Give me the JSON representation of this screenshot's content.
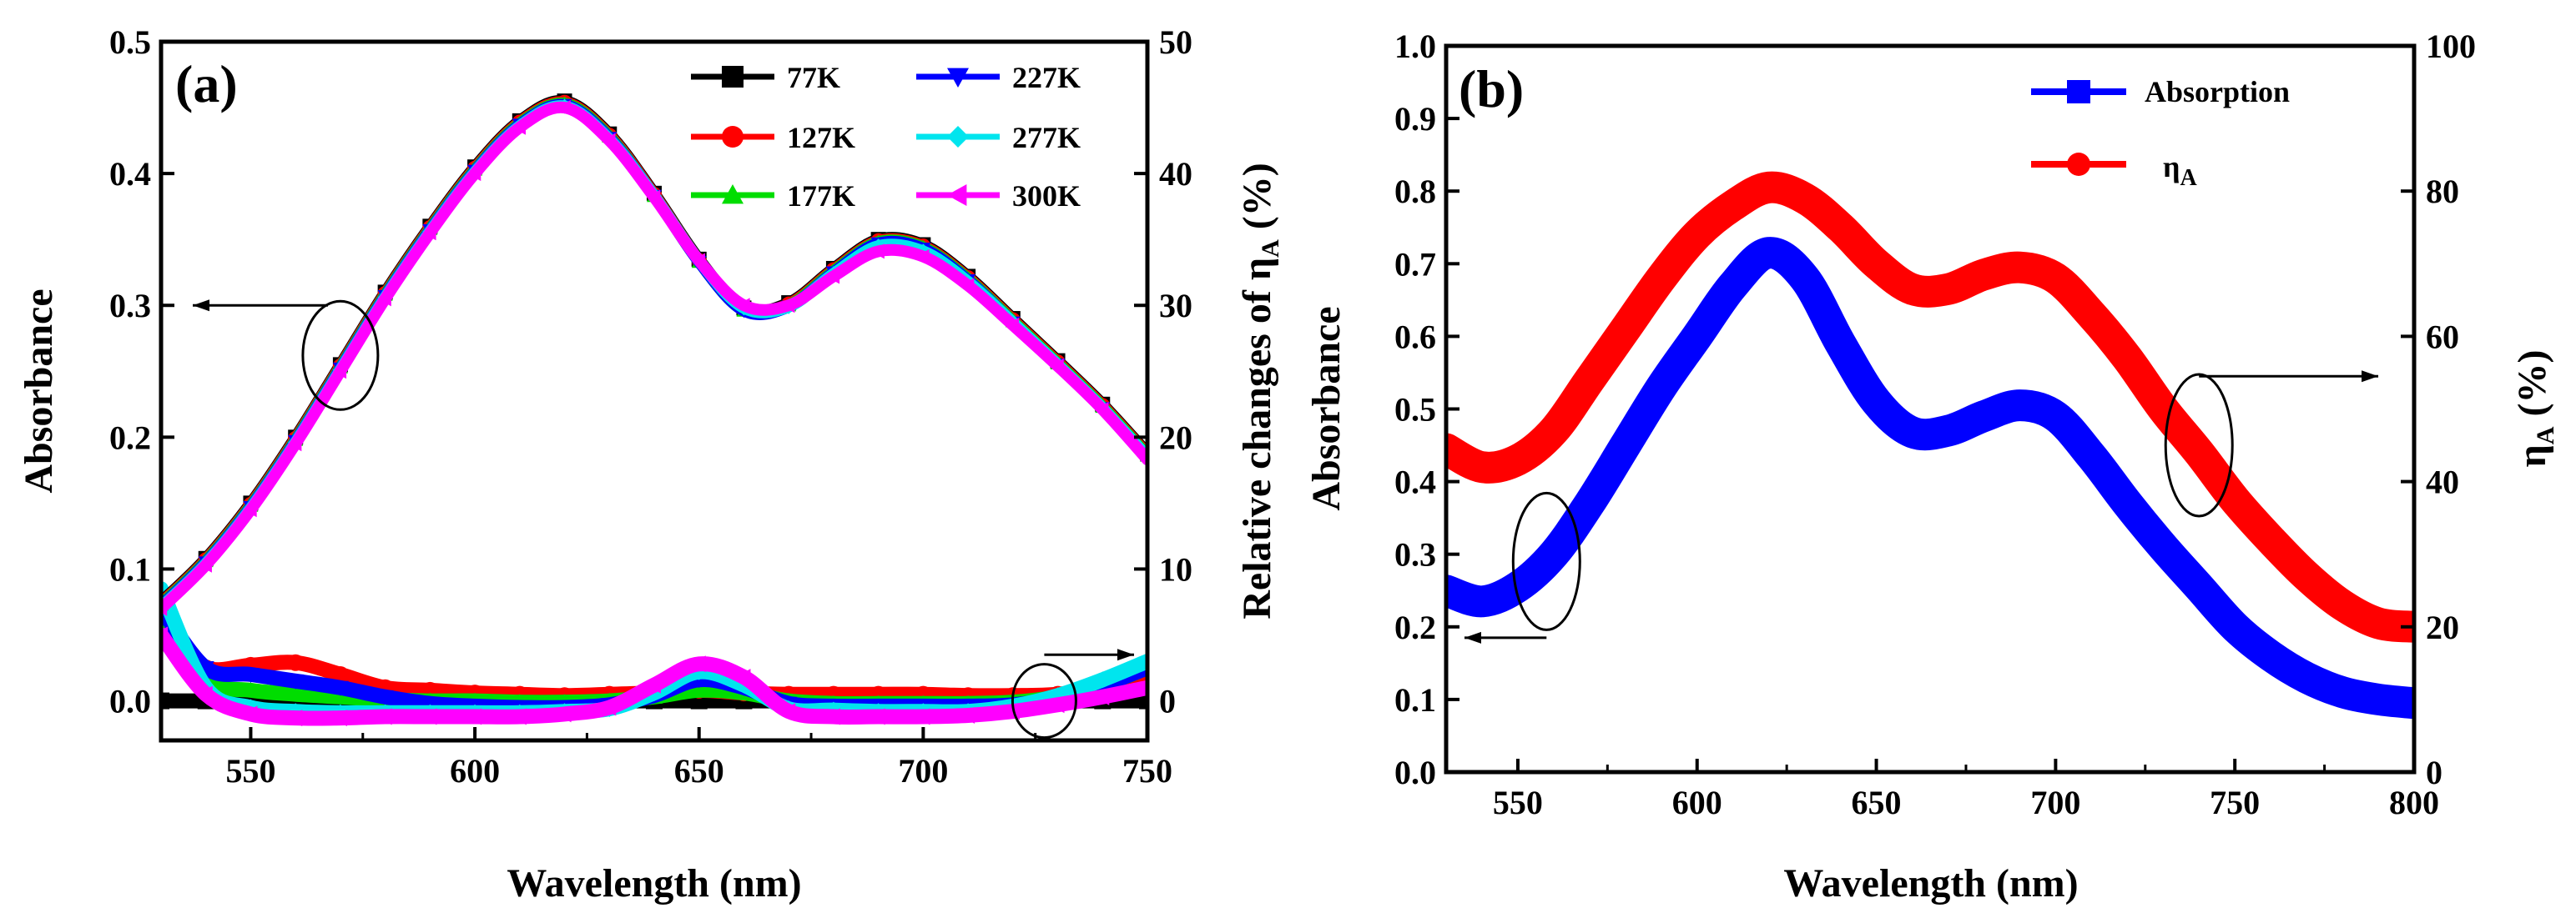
{
  "chart_data": [
    {
      "type": "line",
      "panel_label": "(a)",
      "xlabel": "Wavelength (nm)",
      "ylabel": "Absorbance",
      "y2label": "Relative changes of η",
      "y2label_sub": "A",
      "y2label_unit": " (%)",
      "xlim": [
        530,
        750
      ],
      "ylim": [
        -0.03,
        0.5
      ],
      "y2lim": [
        -3,
        50
      ],
      "xticks": [
        550,
        600,
        650,
        700,
        750
      ],
      "yticks": [
        "0.0",
        "0.1",
        "0.2",
        "0.3",
        "0.4",
        "0.5"
      ],
      "y2ticks": [
        "0",
        "10",
        "20",
        "30",
        "40",
        "50"
      ],
      "legend_position": "top-right",
      "annotations": [
        "left arrow from ellipse near 570 nm pointing to left axis (Absorbance)",
        "right arrow from ellipse near 730 nm pointing to right axis (relative change)"
      ],
      "x": [
        530,
        540,
        550,
        560,
        570,
        580,
        590,
        600,
        610,
        620,
        630,
        640,
        650,
        660,
        670,
        680,
        690,
        700,
        710,
        720,
        730,
        740,
        750
      ],
      "absorbance_series": [
        {
          "name": "77K",
          "color": "#000000",
          "values": [
            0.075,
            0.108,
            0.15,
            0.2,
            0.255,
            0.31,
            0.36,
            0.405,
            0.44,
            0.455,
            0.43,
            0.385,
            0.335,
            0.298,
            0.302,
            0.328,
            0.35,
            0.346,
            0.322,
            0.29,
            0.258,
            0.225,
            0.188
          ]
        },
        {
          "name": "127K",
          "color": "#ff0000",
          "values": [
            0.074,
            0.107,
            0.149,
            0.199,
            0.254,
            0.309,
            0.359,
            0.404,
            0.439,
            0.454,
            0.429,
            0.384,
            0.334,
            0.297,
            0.301,
            0.327,
            0.349,
            0.345,
            0.321,
            0.289,
            0.257,
            0.224,
            0.187
          ]
        },
        {
          "name": "177K",
          "color": "#00dd00",
          "values": [
            0.073,
            0.106,
            0.148,
            0.198,
            0.253,
            0.308,
            0.358,
            0.403,
            0.438,
            0.453,
            0.428,
            0.383,
            0.333,
            0.296,
            0.3,
            0.326,
            0.348,
            0.344,
            0.32,
            0.288,
            0.256,
            0.223,
            0.186
          ]
        },
        {
          "name": "227K",
          "color": "#0000ff",
          "values": [
            0.072,
            0.105,
            0.147,
            0.197,
            0.252,
            0.307,
            0.357,
            0.402,
            0.437,
            0.452,
            0.427,
            0.383,
            0.333,
            0.296,
            0.299,
            0.325,
            0.347,
            0.343,
            0.319,
            0.287,
            0.255,
            0.222,
            0.185
          ]
        },
        {
          "name": "277K",
          "color": "#00e5ee",
          "values": [
            0.071,
            0.104,
            0.146,
            0.196,
            0.251,
            0.306,
            0.356,
            0.401,
            0.436,
            0.451,
            0.426,
            0.383,
            0.334,
            0.298,
            0.299,
            0.324,
            0.345,
            0.341,
            0.318,
            0.287,
            0.255,
            0.222,
            0.185
          ]
        },
        {
          "name": "300K",
          "color": "#ff00ff",
          "values": [
            0.07,
            0.103,
            0.145,
            0.195,
            0.25,
            0.305,
            0.355,
            0.4,
            0.435,
            0.45,
            0.425,
            0.382,
            0.334,
            0.3,
            0.3,
            0.322,
            0.341,
            0.337,
            0.315,
            0.285,
            0.254,
            0.221,
            0.183
          ]
        }
      ],
      "relative_change_series": [
        {
          "name": "77K",
          "color": "#000000",
          "values": [
            0,
            0,
            0,
            0,
            0,
            0,
            0,
            0,
            0,
            0,
            0,
            0,
            0,
            0,
            0,
            0,
            0,
            0,
            0,
            0,
            0,
            0,
            0
          ]
        },
        {
          "name": "127K",
          "color": "#ff0000",
          "values": [
            5.0,
            2.5,
            2.7,
            2.9,
            2.0,
            1.0,
            0.8,
            0.6,
            0.5,
            0.4,
            0.5,
            0.6,
            0.8,
            0.6,
            0.5,
            0.5,
            0.5,
            0.5,
            0.4,
            0.4,
            0.5,
            1.0,
            2.0
          ]
        },
        {
          "name": "177K",
          "color": "#00dd00",
          "values": [
            6.0,
            1.5,
            0.8,
            0.5,
            0.3,
            0.1,
            0.0,
            0.0,
            -0.1,
            -0.1,
            0.0,
            0.3,
            0.8,
            0.6,
            0.0,
            -0.2,
            -0.2,
            -0.2,
            -0.2,
            -0.1,
            0.3,
            1.2,
            2.5
          ]
        },
        {
          "name": "227K",
          "color": "#0000ff",
          "values": [
            7.0,
            2.5,
            2.0,
            1.5,
            1.0,
            0.3,
            -0.2,
            -0.4,
            -0.5,
            -0.5,
            -0.3,
            0.4,
            1.6,
            1.0,
            -0.2,
            -0.4,
            -0.4,
            -0.4,
            -0.4,
            -0.3,
            0.2,
            1.2,
            2.5
          ]
        },
        {
          "name": "277K",
          "color": "#00e5ee",
          "values": [
            8.5,
            1.0,
            -0.5,
            -0.8,
            -0.9,
            -0.9,
            -0.9,
            -0.9,
            -0.9,
            -0.8,
            -0.6,
            0.6,
            2.2,
            1.2,
            -0.6,
            -0.7,
            -0.8,
            -0.8,
            -0.8,
            -0.4,
            0.4,
            1.6,
            3.0
          ]
        },
        {
          "name": "300K",
          "color": "#ff00ff",
          "values": [
            5.0,
            0.5,
            -1.0,
            -1.3,
            -1.3,
            -1.2,
            -1.2,
            -1.2,
            -1.2,
            -1.0,
            -0.5,
            1.2,
            2.8,
            1.8,
            -0.8,
            -1.2,
            -1.2,
            -1.2,
            -1.1,
            -0.8,
            -0.3,
            0.3,
            1.0
          ]
        }
      ]
    },
    {
      "type": "line",
      "panel_label": "(b)",
      "xlabel": "Wavelength (nm)",
      "ylabel": "Absorbance",
      "y2label": "η",
      "y2label_sub": "A",
      "y2label_unit": " (%)",
      "xlim": [
        530,
        800
      ],
      "ylim": [
        0,
        1
      ],
      "y2lim": [
        0,
        100
      ],
      "xticks": [
        550,
        600,
        650,
        700,
        750,
        800
      ],
      "yticks": [
        "0.0",
        "0.1",
        "0.2",
        "0.3",
        "0.4",
        "0.5",
        "0.6",
        "0.7",
        "0.8",
        "0.9",
        "1.0"
      ],
      "y2ticks": [
        "0",
        "20",
        "40",
        "60",
        "80",
        "100"
      ],
      "legend_position": "top-right",
      "annotations": [
        "left arrow from ellipse near 558 nm pointing to left axis (Absorbance)",
        "right arrow from ellipse near 740 nm pointing to right axis (ηA)"
      ],
      "x": [
        530,
        540,
        550,
        560,
        570,
        580,
        590,
        600,
        610,
        620,
        630,
        640,
        650,
        660,
        670,
        680,
        690,
        700,
        710,
        720,
        730,
        740,
        750,
        760,
        770,
        780,
        790,
        800
      ],
      "series": [
        {
          "name": "Absorption",
          "axis": "left",
          "color": "#0000ff",
          "marker": "square",
          "values": [
            0.25,
            0.235,
            0.255,
            0.3,
            0.37,
            0.45,
            0.53,
            0.6,
            0.67,
            0.715,
            0.68,
            0.59,
            0.51,
            0.468,
            0.47,
            0.49,
            0.505,
            0.49,
            0.435,
            0.37,
            0.31,
            0.255,
            0.2,
            0.16,
            0.13,
            0.11,
            0.1,
            0.095
          ]
        },
        {
          "name": "η_A",
          "axis": "right",
          "color": "#ff0000",
          "marker": "circle",
          "values": [
            44.5,
            42,
            43,
            47,
            54,
            61,
            68,
            74,
            78,
            80.5,
            79,
            75,
            70,
            66.5,
            66.5,
            68.5,
            69.5,
            68,
            63,
            57,
            50,
            44,
            37.5,
            32,
            27,
            23,
            20.5,
            20
          ]
        }
      ],
      "legend": [
        {
          "label": "Absorption"
        },
        {
          "label": "η",
          "sub": "A"
        }
      ]
    }
  ]
}
